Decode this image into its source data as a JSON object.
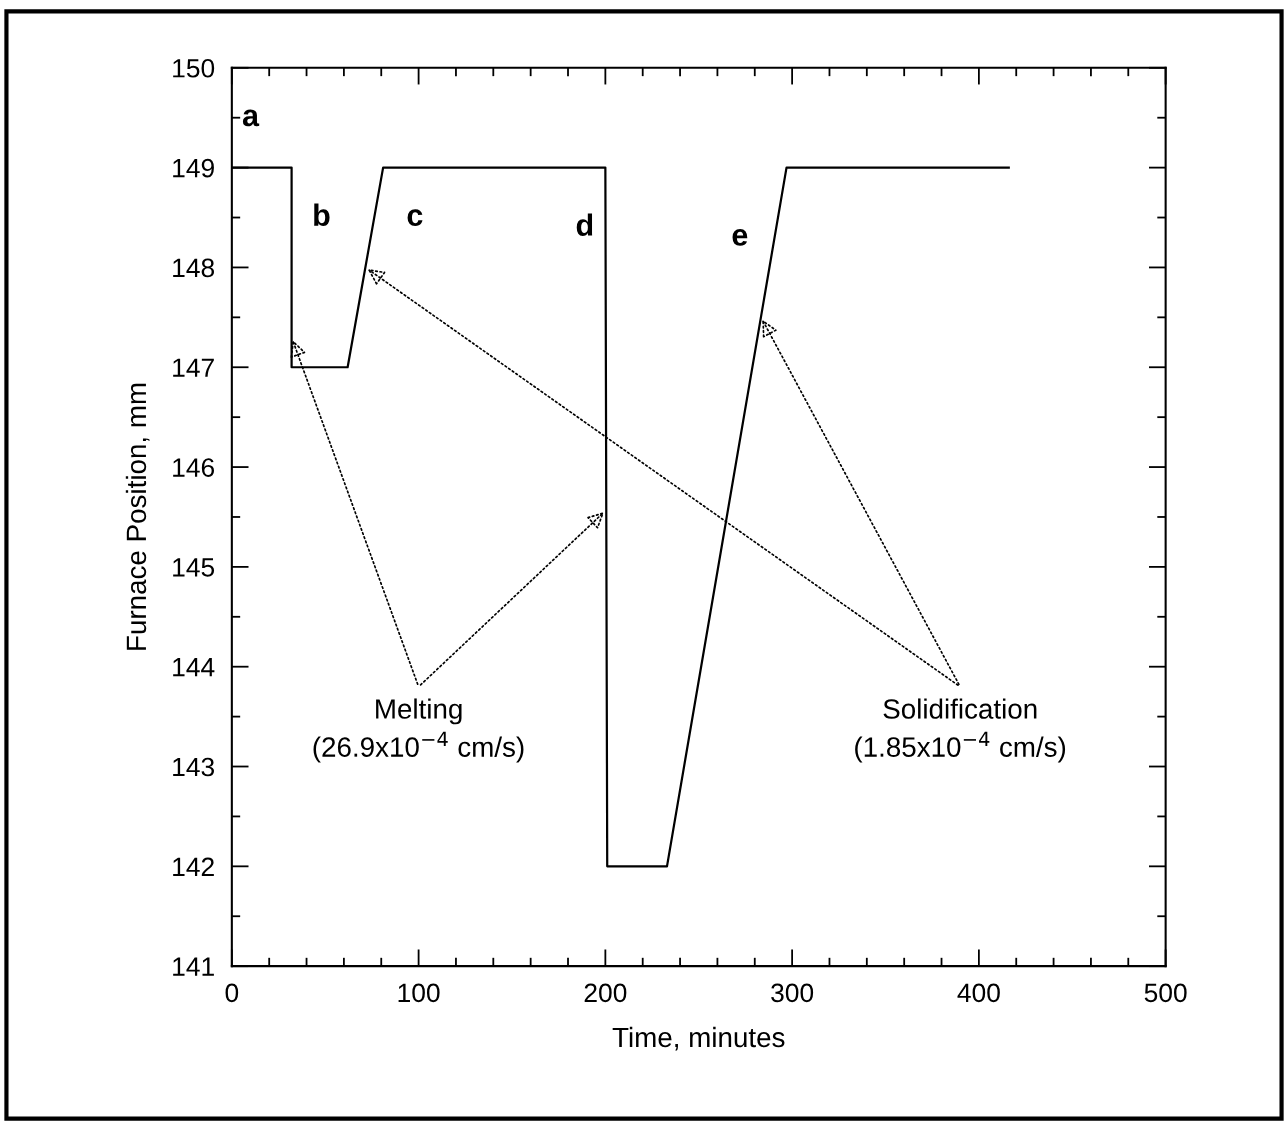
{
  "chart_data": {
    "type": "line",
    "xlabel": "Time, minutes",
    "ylabel": "Furnace Position, mm",
    "x": [
      0,
      32,
      32,
      62,
      81,
      200,
      201,
      233,
      297,
      416
    ],
    "series": [
      {
        "color": "#000000",
        "values": [
          149,
          149,
          147,
          147,
          149,
          149,
          142,
          142,
          149,
          149
        ]
      }
    ],
    "xlim": [
      0,
      500
    ],
    "ylim": [
      141,
      150
    ],
    "xticks": [
      0,
      {
        "value": 20,
        "label": null
      },
      {
        "value": 40,
        "label": null
      },
      {
        "value": 60,
        "label": null
      },
      {
        "value": 80,
        "label": null
      },
      100,
      {
        "value": 120,
        "label": null
      },
      {
        "value": 140,
        "label": null
      },
      {
        "value": 160,
        "label": null
      },
      {
        "value": 180,
        "label": null
      },
      200,
      {
        "value": 220,
        "label": null
      },
      {
        "value": 240,
        "label": null
      },
      {
        "value": 260,
        "label": null
      },
      {
        "value": 280,
        "label": null
      },
      300,
      {
        "value": 320,
        "label": null
      },
      {
        "value": 340,
        "label": null
      },
      {
        "value": 360,
        "label": null
      },
      {
        "value": 380,
        "label": null
      },
      400,
      {
        "value": 420,
        "label": null
      },
      {
        "value": 440,
        "label": null
      },
      {
        "value": 460,
        "label": null
      },
      {
        "value": 480,
        "label": null
      },
      500
    ],
    "yticks": [
      141,
      {
        "value": 141.5,
        "label": null
      },
      142,
      {
        "value": 142.5,
        "label": null
      },
      143,
      {
        "value": 143.5,
        "label": null
      },
      144,
      {
        "value": 144.5,
        "label": null
      },
      145,
      {
        "value": 145.5,
        "label": null
      },
      146,
      {
        "value": 146.5,
        "label": null
      },
      147,
      {
        "value": 147.5,
        "label": null
      },
      148,
      {
        "value": 148.5,
        "label": null
      },
      149,
      {
        "value": 149.5,
        "label": null
      },
      150
    ],
    "grid": false,
    "marker": "none",
    "line_style": "solid",
    "annotations": [
      "a",
      "b",
      "c",
      "d",
      "e",
      {
        "text": "Melting\n(26.9x10$^{−4}$ cm/s)",
        "x": 32,
        "y": 147.3
      },
      {
        "text": "Solidification\n(1.85x10$^{−4}$ cm/s)",
        "x": 71.5,
        "y": 148
      }
    ]
  }
}
